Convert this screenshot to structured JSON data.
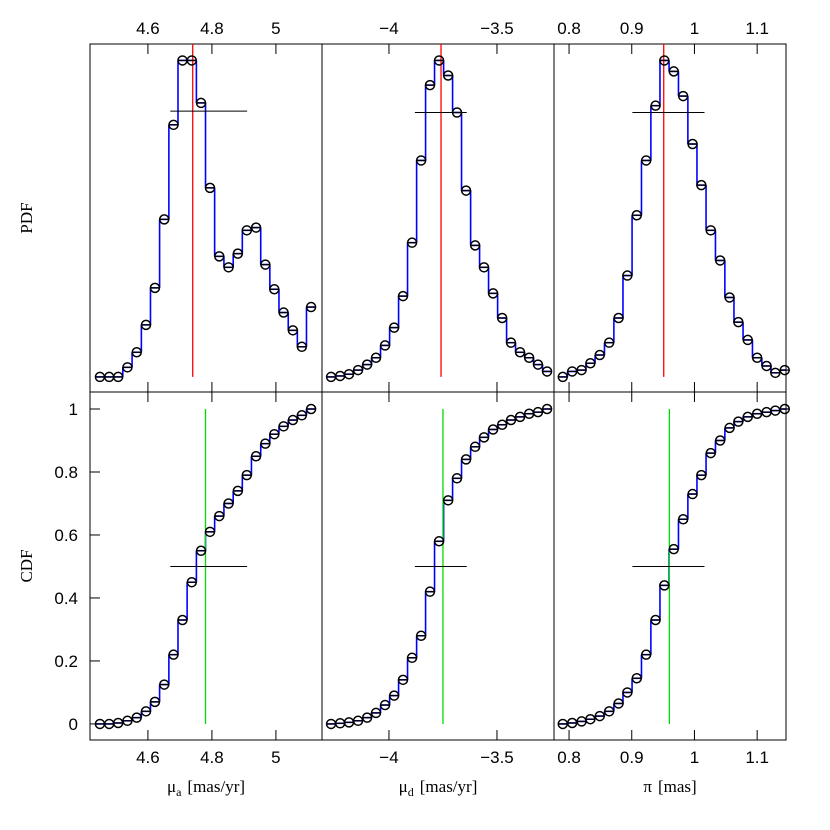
{
  "chart_data": [
    {
      "type": "step",
      "ylabel": "PDF",
      "color": "#0000ff",
      "median_color": "#ff0000",
      "x": [
        4.45,
        4.479,
        4.507,
        4.536,
        4.565,
        4.594,
        4.622,
        4.651,
        4.68,
        4.708,
        4.737,
        4.766,
        4.794,
        4.823,
        4.852,
        4.881,
        4.909,
        4.938,
        4.967,
        4.995,
        5.024,
        5.053,
        5.081,
        5.11
      ],
      "values": [
        0,
        0,
        0,
        0.07,
        0.18,
        0.38,
        0.65,
        1.15,
        1.84,
        2.31,
        2.31,
        2.0,
        1.38,
        0.88,
        0.8,
        0.9,
        1.07,
        1.09,
        0.82,
        0.64,
        0.47,
        0.34,
        0.22,
        0.51
      ],
      "median": 4.74,
      "interval": [
        4.67,
        4.91
      ],
      "interval_level": 1.94,
      "xlim": [
        4.419,
        5.144
      ],
      "ylim": [
        -0.11,
        2.43
      ],
      "xticks": [
        4.6,
        4.8,
        5
      ]
    },
    {
      "type": "step",
      "color": "#0000ff",
      "median_color": "#ff0000",
      "x": [
        -4.268,
        -4.226,
        -4.185,
        -4.143,
        -4.101,
        -4.06,
        -4.018,
        -3.976,
        -3.935,
        -3.893,
        -3.851,
        -3.81,
        -3.768,
        -3.726,
        -3.685,
        -3.643,
        -3.601,
        -3.56,
        -3.518,
        -3.476,
        -3.435,
        -3.393,
        -3.351,
        -3.31,
        -3.268
      ],
      "values": [
        0,
        0.007,
        0.02,
        0.05,
        0.09,
        0.14,
        0.23,
        0.36,
        0.59,
        0.98,
        1.58,
        2.13,
        2.31,
        2.2,
        1.93,
        1.36,
        0.96,
        0.8,
        0.61,
        0.43,
        0.25,
        0.18,
        0.14,
        0.09,
        0.04
      ],
      "median": -3.759,
      "interval": [
        -3.88,
        -3.64
      ],
      "interval_level": 1.93,
      "xlim": [
        -4.31,
        -3.236
      ],
      "ylim": [
        -0.11,
        2.43
      ],
      "xticks": [
        {
          "value": -4,
          "label": "−4"
        },
        {
          "value": -3.5,
          "label": "−3.5"
        }
      ]
    },
    {
      "type": "step",
      "color": "#0000ff",
      "median_color": "#ff0000",
      "x": [
        0.79,
        0.805,
        0.82,
        0.834,
        0.849,
        0.864,
        0.879,
        0.893,
        0.908,
        0.923,
        0.938,
        0.952,
        0.967,
        0.982,
        0.997,
        1.011,
        1.026,
        1.041,
        1.056,
        1.07,
        1.085,
        1.1,
        1.115,
        1.129,
        1.144
      ],
      "values": [
        0,
        0.04,
        0.05,
        0.1,
        0.16,
        0.25,
        0.43,
        0.74,
        1.18,
        1.58,
        1.98,
        2.31,
        2.23,
        2.05,
        1.7,
        1.4,
        1.07,
        0.85,
        0.58,
        0.4,
        0.27,
        0.14,
        0.08,
        0.03,
        0.05
      ],
      "median": 0.951,
      "interval": [
        0.901,
        1.016
      ],
      "interval_level": 1.93,
      "xlim": [
        0.776,
        1.146
      ],
      "ylim": [
        -0.11,
        2.43
      ],
      "xticks": [
        0.8,
        0.9,
        1,
        1.1
      ]
    },
    {
      "type": "step",
      "ylabel": "CDF",
      "color": "#0000ff",
      "median_color": "#00dd00",
      "xlabel_symbol": "μ",
      "xlabel_subscript": "a",
      "xlabel_unit": "[mas/yr]",
      "x": [
        4.45,
        4.479,
        4.507,
        4.536,
        4.565,
        4.594,
        4.622,
        4.651,
        4.68,
        4.708,
        4.737,
        4.766,
        4.794,
        4.823,
        4.852,
        4.881,
        4.909,
        4.938,
        4.967,
        4.995,
        5.024,
        5.053,
        5.081,
        5.11
      ],
      "values": [
        0,
        0,
        0.003,
        0.01,
        0.02,
        0.04,
        0.07,
        0.125,
        0.22,
        0.33,
        0.45,
        0.55,
        0.61,
        0.66,
        0.7,
        0.74,
        0.79,
        0.85,
        0.89,
        0.92,
        0.945,
        0.965,
        0.98,
        1.0
      ],
      "median": 4.78,
      "interval": [
        4.67,
        4.91
      ],
      "interval_level": 0.5,
      "xlim": [
        4.419,
        5.144
      ],
      "ylim": [
        -0.051,
        1.054
      ],
      "xticks": [
        4.6,
        4.8,
        5
      ],
      "yticks": [
        0,
        0.2,
        0.4,
        0.6,
        0.8,
        1
      ]
    },
    {
      "type": "step",
      "color": "#0000ff",
      "median_color": "#00dd00",
      "xlabel_symbol": "μ",
      "xlabel_subscript": "d",
      "xlabel_unit": "[mas/yr]",
      "x": [
        -4.268,
        -4.226,
        -4.185,
        -4.143,
        -4.101,
        -4.06,
        -4.018,
        -3.976,
        -3.935,
        -3.893,
        -3.851,
        -3.81,
        -3.768,
        -3.726,
        -3.685,
        -3.643,
        -3.601,
        -3.56,
        -3.518,
        -3.476,
        -3.435,
        -3.393,
        -3.351,
        -3.31,
        -3.268
      ],
      "values": [
        0,
        0.002,
        0.005,
        0.01,
        0.02,
        0.035,
        0.06,
        0.09,
        0.14,
        0.21,
        0.28,
        0.42,
        0.58,
        0.71,
        0.78,
        0.84,
        0.88,
        0.91,
        0.935,
        0.95,
        0.965,
        0.975,
        0.985,
        0.99,
        1.0
      ],
      "median": -3.75,
      "interval": [
        -3.88,
        -3.64
      ],
      "interval_level": 0.5,
      "xlim": [
        -4.31,
        -3.236
      ],
      "ylim": [
        -0.051,
        1.054
      ],
      "xticks": [
        {
          "value": -4,
          "label": "−4"
        },
        {
          "value": -3.5,
          "label": "−3.5"
        }
      ]
    },
    {
      "type": "step",
      "color": "#0000ff",
      "median_color": "#00dd00",
      "xlabel_symbol": "π",
      "xlabel_unit": "[mas]",
      "x": [
        0.79,
        0.805,
        0.82,
        0.834,
        0.849,
        0.864,
        0.879,
        0.893,
        0.908,
        0.923,
        0.938,
        0.952,
        0.967,
        0.982,
        0.997,
        1.011,
        1.026,
        1.041,
        1.056,
        1.07,
        1.085,
        1.1,
        1.115,
        1.129,
        1.144
      ],
      "values": [
        0,
        0.003,
        0.008,
        0.015,
        0.025,
        0.04,
        0.065,
        0.1,
        0.145,
        0.22,
        0.33,
        0.44,
        0.555,
        0.65,
        0.73,
        0.79,
        0.86,
        0.9,
        0.94,
        0.96,
        0.975,
        0.985,
        0.99,
        0.995,
        1.0
      ],
      "median": 0.96,
      "interval": [
        0.901,
        1.016
      ],
      "interval_level": 0.5,
      "xlim": [
        0.776,
        1.146
      ],
      "ylim": [
        -0.051,
        1.054
      ],
      "xticks": [
        0.8,
        0.9,
        1,
        1.1
      ]
    }
  ]
}
